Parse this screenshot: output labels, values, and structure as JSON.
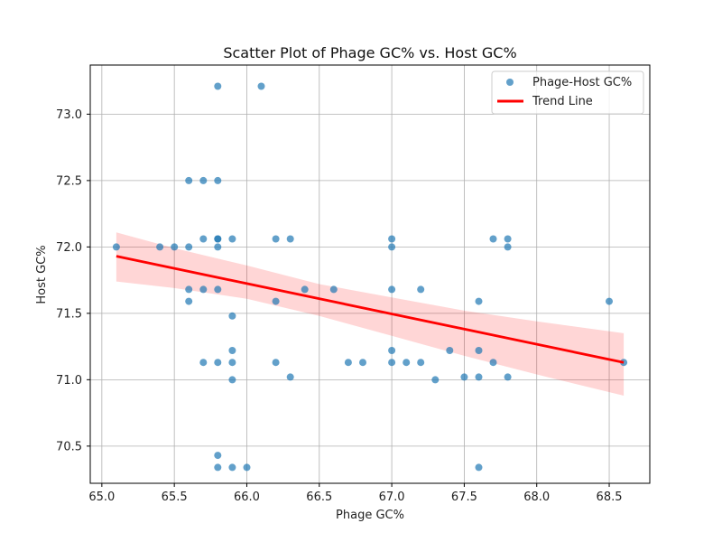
{
  "chart_data": {
    "type": "scatter",
    "title": "Scatter Plot of Phage GC% vs. Host GC%",
    "xlabel": "Phage GC%",
    "ylabel": "Host GC%",
    "xlim": [
      64.92,
      68.78
    ],
    "ylim": [
      70.22,
      73.37
    ],
    "xticks": [
      65.0,
      65.5,
      66.0,
      66.5,
      67.0,
      67.5,
      68.0,
      68.5
    ],
    "yticks": [
      70.5,
      71.0,
      71.5,
      72.0,
      72.5,
      73.0
    ],
    "xtick_labels": [
      "65.0",
      "65.5",
      "66.0",
      "66.5",
      "67.0",
      "67.5",
      "68.0",
      "68.5"
    ],
    "ytick_labels": [
      "70.5",
      "71.0",
      "71.5",
      "72.0",
      "72.5",
      "73.0"
    ],
    "grid": true,
    "legend_position": "top-right",
    "series": [
      {
        "name": "Phage-Host GC%",
        "kind": "scatter",
        "color": "#1f77b4",
        "x": [
          65.1,
          65.4,
          65.5,
          65.6,
          65.6,
          65.6,
          65.6,
          65.7,
          65.7,
          65.7,
          65.7,
          65.8,
          65.8,
          65.8,
          65.8,
          65.8,
          65.8,
          65.8,
          65.8,
          65.8,
          65.9,
          65.9,
          65.9,
          65.9,
          65.9,
          65.9,
          66.0,
          66.1,
          66.2,
          66.2,
          66.2,
          66.3,
          66.3,
          66.4,
          66.6,
          66.7,
          66.8,
          67.0,
          67.0,
          67.0,
          67.0,
          67.0,
          67.1,
          67.2,
          67.2,
          67.3,
          67.4,
          67.5,
          67.6,
          67.6,
          67.6,
          67.6,
          67.7,
          67.7,
          67.8,
          67.8,
          67.8,
          68.5,
          68.6
        ],
        "y": [
          72.0,
          72.0,
          72.0,
          72.5,
          72.0,
          71.68,
          71.59,
          72.5,
          72.06,
          71.68,
          71.13,
          73.21,
          72.5,
          72.06,
          72.0,
          71.68,
          71.13,
          70.43,
          70.34,
          72.06,
          71.48,
          71.22,
          71.13,
          71.0,
          70.34,
          72.06,
          70.34,
          73.21,
          72.06,
          71.59,
          71.13,
          72.06,
          71.02,
          71.68,
          71.68,
          71.13,
          71.13,
          72.06,
          72.0,
          71.68,
          71.22,
          71.13,
          71.13,
          71.68,
          71.13,
          71.0,
          71.22,
          71.02,
          71.59,
          71.22,
          71.02,
          70.34,
          72.06,
          71.13,
          72.06,
          72.0,
          71.02,
          71.59,
          71.13
        ]
      },
      {
        "name": "Trend Line",
        "kind": "line",
        "color": "#ff0000",
        "x": [
          65.1,
          68.6
        ],
        "y": [
          71.93,
          71.13
        ]
      }
    ],
    "confidence_band": {
      "color": "#ff0000",
      "x": [
        65.1,
        65.5,
        66.0,
        66.5,
        67.0,
        67.5,
        68.0,
        68.6
      ],
      "upper": [
        72.11,
        71.99,
        71.86,
        71.72,
        71.62,
        71.52,
        71.44,
        71.35
      ],
      "lower": [
        71.74,
        71.69,
        71.61,
        71.48,
        71.33,
        71.18,
        71.04,
        70.88
      ]
    }
  }
}
